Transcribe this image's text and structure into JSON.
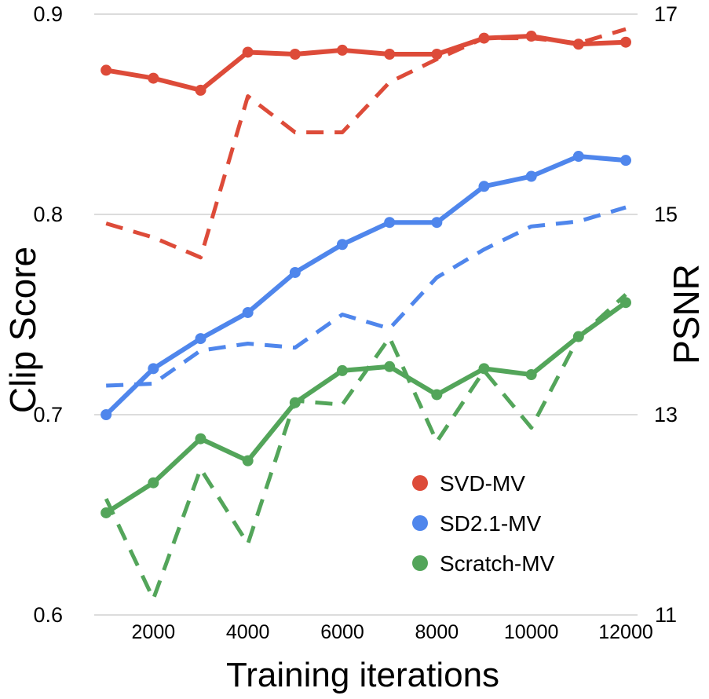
{
  "chart_data": {
    "type": "line",
    "xlabel": "Training iterations",
    "ylabel": "Clip Score",
    "ylabel_right": "PSNR",
    "x": [
      1000,
      2000,
      3000,
      4000,
      5000,
      6000,
      7000,
      8000,
      9000,
      10000,
      11000,
      12000
    ],
    "x_ticks": [
      2000,
      4000,
      6000,
      8000,
      10000,
      12000
    ],
    "xlim": [
      0,
      12000
    ],
    "ylim": [
      0.6,
      0.9
    ],
    "y_ticks": [
      "0.6",
      "0.7",
      "0.8",
      "0.9"
    ],
    "ylim_right": [
      11,
      17
    ],
    "y_ticks_right": [
      "11",
      "13",
      "15",
      "17"
    ],
    "grid": true,
    "legend_position": "bottom-right",
    "series": [
      {
        "name": "SVD-MV",
        "color": "#dd4b39",
        "axis": "left",
        "style": "solid",
        "values": [
          0.872,
          0.868,
          0.862,
          0.881,
          0.88,
          0.882,
          0.88,
          0.88,
          0.888,
          0.889,
          0.885,
          0.886
        ]
      },
      {
        "name": "SD2.1-MV",
        "color": "#4f86ec",
        "axis": "left",
        "style": "solid",
        "values": [
          0.7,
          0.723,
          0.738,
          0.751,
          0.771,
          0.785,
          0.796,
          0.796,
          0.814,
          0.819,
          0.829,
          0.827
        ]
      },
      {
        "name": "Scratch-MV",
        "color": "#53a55a",
        "axis": "left",
        "style": "solid",
        "values": [
          0.651,
          0.666,
          0.688,
          0.677,
          0.706,
          0.722,
          0.724,
          0.71,
          0.723,
          0.72,
          0.739,
          0.756
        ]
      },
      {
        "color": "#dd4b39",
        "axis": "right",
        "style": "dashed",
        "values": [
          14.91,
          14.77,
          14.57,
          16.18,
          15.82,
          15.82,
          16.32,
          16.55,
          16.76,
          16.76,
          16.71,
          16.85
        ]
      },
      {
        "color": "#4f86ec",
        "axis": "right",
        "style": "dashed",
        "values": [
          13.29,
          13.31,
          13.64,
          13.71,
          13.67,
          14.0,
          13.86,
          14.37,
          14.65,
          14.88,
          14.93,
          15.07
        ]
      },
      {
        "color": "#53a55a",
        "axis": "right",
        "style": "dashed",
        "values": [
          12.16,
          11.16,
          12.46,
          11.71,
          13.14,
          13.1,
          13.77,
          12.73,
          13.44,
          12.87,
          13.77,
          14.2
        ]
      }
    ]
  }
}
